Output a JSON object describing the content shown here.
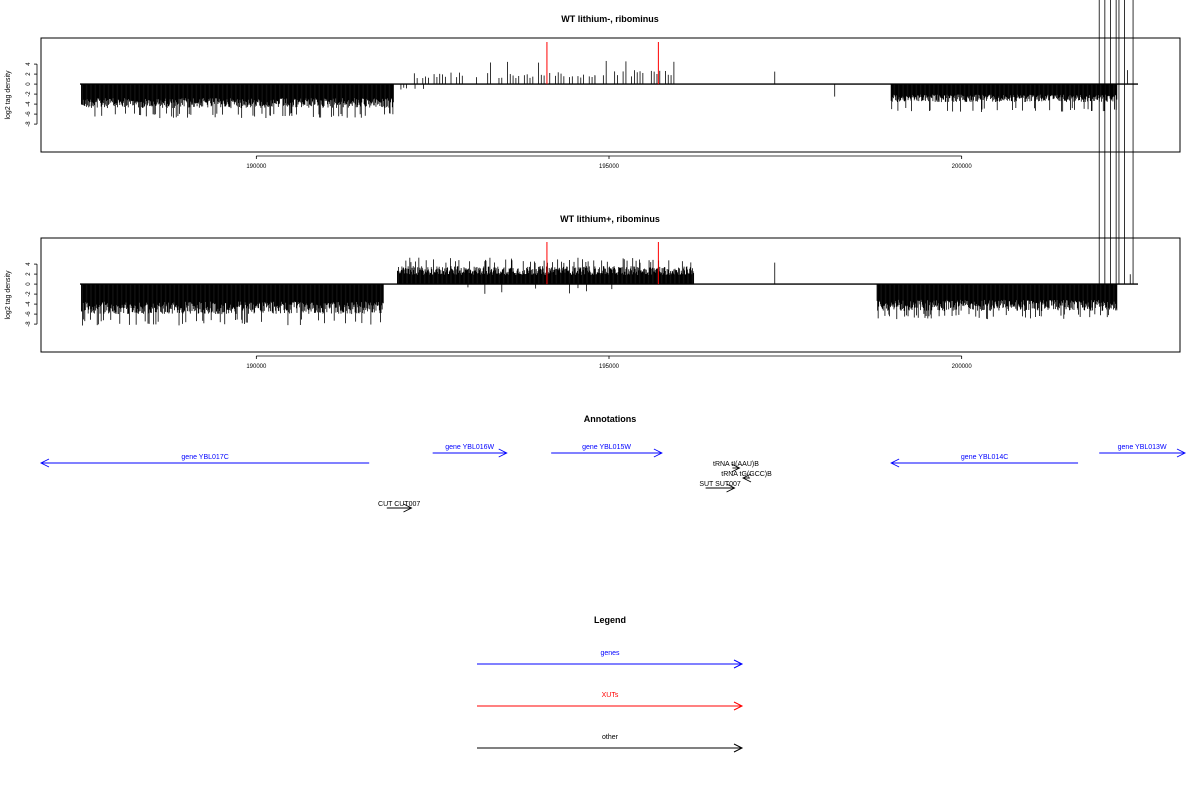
{
  "chart_data": [
    {
      "type": "bar",
      "title": "WT lithium-, ribominus",
      "ylabel": "log2 tag density",
      "xlabel": "",
      "xlim": [
        187500,
        202500
      ],
      "ylim": [
        -9,
        6
      ],
      "y_ticks": [
        "4",
        "2",
        "0",
        "-2",
        "-4",
        "-6",
        "-8"
      ],
      "x_ticks": [
        "190000",
        "195000",
        "200000"
      ],
      "series": [
        {
          "values_summary": [
            {
              "x_range": [
                187520,
                191950
              ],
              "min_y": -6.8,
              "typical_y": -4.0,
              "note": "dense negative"
            },
            {
              "x_range": [
                192050,
                192400
              ],
              "min_y": -2.0,
              "typical_y": -1.0,
              "note": "sparse negative"
            },
            {
              "x_range": [
                192200,
                194800
              ],
              "max_y": 4.5,
              "typical_y": 2.0,
              "note": "sparse positive"
            },
            {
              "x_range": [
                194800,
                195950
              ],
              "max_y": 4.8,
              "typical_y": 2.5,
              "note": "positive"
            },
            {
              "x_range": [
                197350,
                197400
              ],
              "max_y": 2.5,
              "note": "single peak"
            },
            {
              "x_range": [
                198200,
                198250
              ],
              "min_y": -2.5,
              "note": "single dip"
            },
            {
              "x_range": [
                199000,
                202200
              ],
              "min_y": -5.6,
              "typical_y": -3.0,
              "note": "dense negative"
            },
            {
              "x_range": [
                202350,
                202400
              ],
              "max_y": 2.8,
              "note": "single peak"
            }
          ]
        }
      ],
      "markers": [
        {
          "x": 194120,
          "color": "#ff0000"
        },
        {
          "x": 195700,
          "color": "#ff0000"
        }
      ]
    },
    {
      "type": "bar",
      "title": "WT lithium+, ribominus",
      "ylabel": "log2 tag density",
      "xlabel": "",
      "xlim": [
        187500,
        202500
      ],
      "ylim": [
        -9,
        6
      ],
      "y_ticks": [
        "4",
        "2",
        "0",
        "-2",
        "-4",
        "-6",
        "-8"
      ],
      "x_ticks": [
        "190000",
        "195000",
        "200000"
      ],
      "series": [
        {
          "values_summary": [
            {
              "x_range": [
                187520,
                191800
              ],
              "min_y": -8.3,
              "typical_y": -5.0,
              "note": "dense negative"
            },
            {
              "x_range": [
                192000,
                196200
              ],
              "max_y": 5.3,
              "typical_y": 3.0,
              "note": "dense positive"
            },
            {
              "x_range": [
                197350,
                197400
              ],
              "max_y": 4.3,
              "note": "single peak"
            },
            {
              "x_range": [
                198800,
                202200
              ],
              "min_y": -7.0,
              "typical_y": -4.5,
              "note": "dense negative"
            },
            {
              "x_range": [
                201950,
                202450
              ],
              "max_y": 2.0,
              "note": "small positive"
            }
          ]
        }
      ],
      "markers": [
        {
          "x": 194120,
          "color": "#ff0000"
        },
        {
          "x": 195700,
          "color": "#ff0000"
        }
      ]
    }
  ],
  "annotations": {
    "title": "Annotations",
    "items": [
      {
        "label": "gene YBL017C",
        "start": 187500,
        "end": 191600,
        "dir": "left",
        "row": 1,
        "color": "#0000ff"
      },
      {
        "label": "gene YBL016W",
        "start": 192500,
        "end": 193550,
        "dir": "right",
        "row": 0,
        "color": "#0000ff"
      },
      {
        "label": "gene YBL015W",
        "start": 194180,
        "end": 195750,
        "dir": "right",
        "row": 0,
        "color": "#0000ff"
      },
      {
        "label": "gene YBL014C",
        "start": 199000,
        "end": 201650,
        "dir": "left",
        "row": 1,
        "color": "#0000ff"
      },
      {
        "label": "gene YBL013W",
        "start": 201950,
        "end": 202500,
        "dir": "right",
        "row": 0,
        "color": "#0000ff"
      },
      {
        "label": "tRNA tI(AAU)B",
        "start": 196750,
        "end": 196850,
        "dir": "right",
        "row": 1.5,
        "color": "#000000"
      },
      {
        "label": "tRNA tG(GCC)B",
        "start": 196900,
        "end": 197000,
        "dir": "left",
        "row": 2.5,
        "color": "#000000"
      },
      {
        "label": "SUT SUT007",
        "start": 196370,
        "end": 196780,
        "dir": "right",
        "row": 3.5,
        "color": "#000000"
      },
      {
        "label": "CUT CUT007",
        "start": 191850,
        "end": 192200,
        "dir": "right",
        "row": 5.5,
        "color": "#000000"
      }
    ]
  },
  "legend": {
    "title": "Legend",
    "items": [
      {
        "label": "genes",
        "color": "#0000ff"
      },
      {
        "label": "XUTs",
        "color": "#ff0000"
      },
      {
        "label": "other",
        "color": "#000000"
      }
    ]
  }
}
